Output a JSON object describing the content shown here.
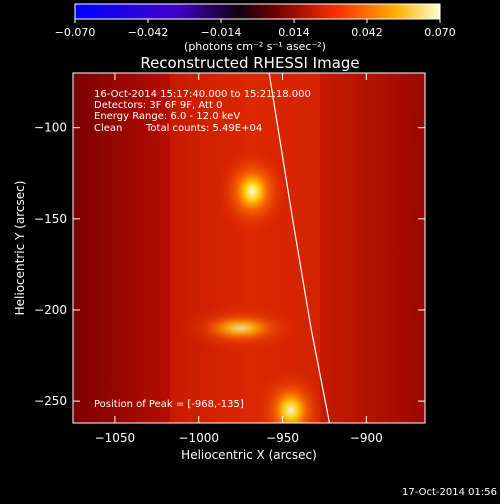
{
  "chart_data": {
    "type": "heatmap",
    "title": "Reconstructed RHESSI Image",
    "xlabel": "Heliocentric X (arcsec)",
    "ylabel": "Heliocentric Y (arcsec)",
    "xlim": [
      -1075,
      -865
    ],
    "ylim": [
      -262,
      -70
    ],
    "xticks": [
      -1050,
      -1000,
      -950,
      -900
    ],
    "yticks": [
      -100,
      -150,
      -200,
      -250
    ],
    "colorbar": {
      "min": -0.07,
      "max": 0.07,
      "ticks": [
        "−0.070",
        "−0.042",
        "−0.014",
        "0.014",
        "0.042",
        "0.070"
      ],
      "units_label": "(photons cm⁻² s⁻¹ asec⁻²)",
      "colormap": [
        "#0000ff",
        "#5000c0",
        "#000000",
        "#a00000",
        "#ff4000",
        "#ffc000",
        "#ffffe0"
      ]
    },
    "annotations": [
      "16-Oct-2014 15:17:40.000 to 15:21:18.000",
      "Detectors: 3F 6F 9F, Att 0",
      "Energy Range: 6.0 - 12.0 keV",
      "Clean",
      "Total counts: 5.49E+04"
    ],
    "peak_label": "Position of Peak = [-968,-135]",
    "sources": [
      {
        "x": -968,
        "y": -135,
        "intensity": 1.0
      },
      {
        "x": -975,
        "y": -210,
        "intensity": 0.65
      },
      {
        "x": -945,
        "y": -255,
        "intensity": 0.9
      }
    ],
    "limb_curve": [
      [
        -958,
        -70
      ],
      [
        -944,
        -150
      ],
      [
        -933,
        -210
      ],
      [
        -922,
        -262
      ]
    ],
    "footer_timestamp": "17-Oct-2014 01:56"
  }
}
